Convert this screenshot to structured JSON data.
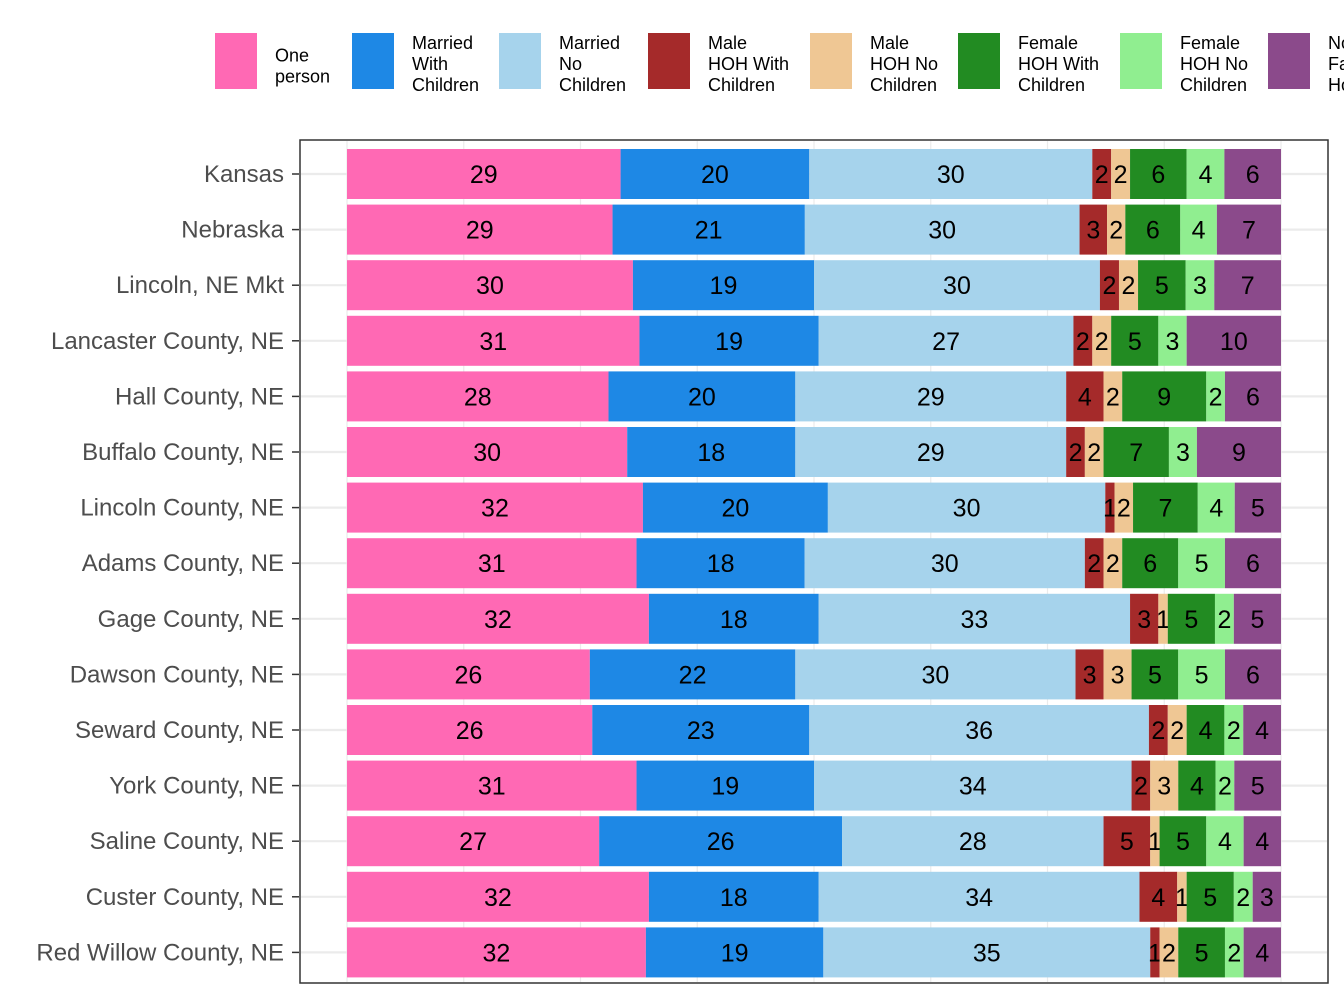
{
  "chart_data": {
    "type": "bar",
    "orientation": "horizontal",
    "stacked": "percent",
    "legend_position": "top",
    "grid": true,
    "categories": [
      "Kansas",
      "Nebraska",
      "Lincoln, NE Mkt",
      "Lancaster County, NE",
      "Hall County, NE",
      "Buffalo County, NE",
      "Lincoln County, NE",
      "Adams County, NE",
      "Gage County, NE",
      "Dawson County, NE",
      "Seward County, NE",
      "York County, NE",
      "Saline County, NE",
      "Custer County, NE",
      "Red Willow County, NE"
    ],
    "series": [
      {
        "name": "One person",
        "legend_lines": [
          "One",
          "person"
        ],
        "color": "#FF69B4",
        "values": [
          29,
          29,
          30,
          31,
          28,
          30,
          32,
          31,
          32,
          26,
          26,
          31,
          27,
          32,
          32
        ]
      },
      {
        "name": "Married With Children",
        "legend_lines": [
          "Married",
          "With",
          "Children"
        ],
        "color": "#1E88E5",
        "values": [
          20,
          21,
          19,
          19,
          20,
          18,
          20,
          18,
          18,
          22,
          23,
          19,
          26,
          18,
          19
        ]
      },
      {
        "name": "Married No Children",
        "legend_lines": [
          "Married",
          "No",
          "Children"
        ],
        "color": "#A6D3EC",
        "values": [
          30,
          30,
          30,
          27,
          29,
          29,
          30,
          30,
          33,
          30,
          36,
          34,
          28,
          34,
          35
        ]
      },
      {
        "name": "Male HOH With Children",
        "legend_lines": [
          "Male",
          "HOH With",
          "Children"
        ],
        "color": "#A52A2A",
        "values": [
          2,
          3,
          2,
          2,
          4,
          2,
          1,
          2,
          3,
          3,
          2,
          2,
          5,
          4,
          1
        ]
      },
      {
        "name": "Male HOH No Children",
        "legend_lines": [
          "Male",
          "HOH No",
          "Children"
        ],
        "color": "#EFC794",
        "values": [
          2,
          2,
          2,
          2,
          2,
          2,
          2,
          2,
          1,
          3,
          2,
          3,
          1,
          1,
          2
        ]
      },
      {
        "name": "Female HOH With Children",
        "legend_lines": [
          "Female",
          "HOH With",
          "Children"
        ],
        "color": "#228B22",
        "values": [
          6,
          6,
          5,
          5,
          9,
          7,
          7,
          6,
          5,
          5,
          4,
          4,
          5,
          5,
          5
        ]
      },
      {
        "name": "Female HOH No Children",
        "legend_lines": [
          "Female",
          "HOH No",
          "Children"
        ],
        "color": "#90EE90",
        "values": [
          4,
          4,
          3,
          3,
          2,
          3,
          4,
          5,
          2,
          5,
          2,
          2,
          4,
          2,
          2
        ]
      },
      {
        "name": "Non Family HOH",
        "legend_lines": [
          "No",
          "Fa",
          "Ho"
        ],
        "color": "#8B4A8B",
        "values": [
          6,
          7,
          7,
          10,
          6,
          9,
          5,
          6,
          5,
          6,
          4,
          5,
          4,
          3,
          4
        ]
      }
    ]
  }
}
